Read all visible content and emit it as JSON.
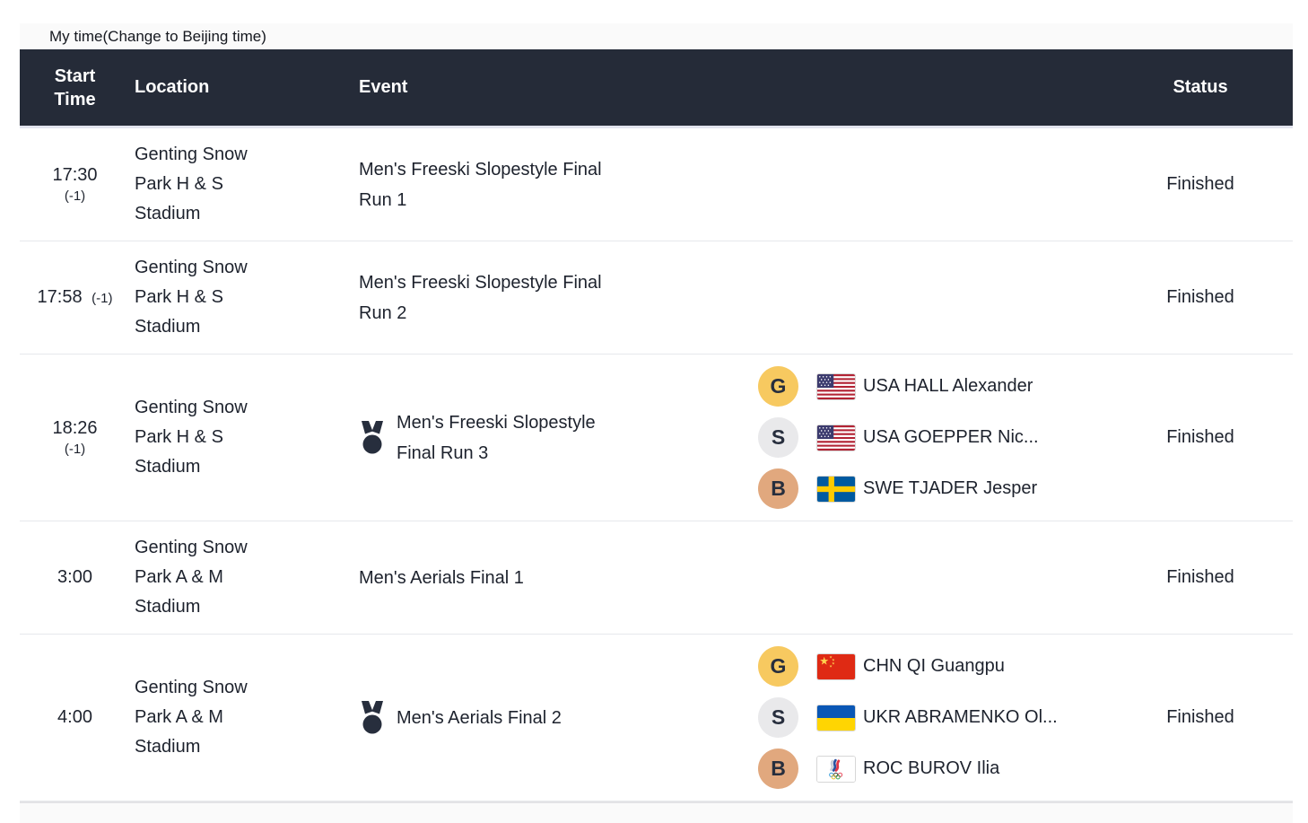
{
  "toolbar": {
    "my_time_prefix": "My time ",
    "change_time_label": "(Change to Beijing time)"
  },
  "colors": {
    "header_bg": "#252b38",
    "header_text": "#ffffff",
    "gold": "#f7c960",
    "silver": "#e9e9eb",
    "bronze": "#e1a87e",
    "row_text": "#1d222d"
  },
  "table": {
    "headers": {
      "start_time": "Start Time",
      "location": "Location",
      "event": "Event",
      "status": "Status"
    },
    "rows": [
      {
        "time": "17:30",
        "offset": "(-1)",
        "offset_layout": "stacked",
        "location": "Genting Snow Park H & S Stadium",
        "event": "Men's Freeski Slopestyle Final Run 1",
        "medal_icon": false,
        "medalists": [],
        "status": "Finished"
      },
      {
        "time": "17:58",
        "offset": "(-1)",
        "offset_layout": "inline",
        "location": "Genting Snow Park H & S Stadium",
        "event": "Men's Freeski Slopestyle Final Run 2",
        "medal_icon": false,
        "medalists": [],
        "status": "Finished"
      },
      {
        "time": "18:26",
        "offset": "(-1)",
        "offset_layout": "stacked",
        "location": "Genting Snow Park H & S Stadium",
        "event": "Men's Freeski Slopestyle Final Run 3",
        "medal_icon": true,
        "medalists": [
          {
            "medal": "G",
            "flag": "usa-flag",
            "name": "USA HALL Alexander"
          },
          {
            "medal": "S",
            "flag": "usa-flag",
            "name": "USA GOEPPER Nic..."
          },
          {
            "medal": "B",
            "flag": "swe-flag",
            "name": "SWE TJADER Jesper"
          }
        ],
        "status": "Finished"
      },
      {
        "time": "3:00",
        "offset": "",
        "offset_layout": "none",
        "location": "Genting Snow Park A & M Stadium",
        "event": "Men's Aerials Final 1",
        "medal_icon": false,
        "medalists": [],
        "status": "Finished"
      },
      {
        "time": "4:00",
        "offset": "",
        "offset_layout": "none",
        "location": "Genting Snow Park A & M Stadium",
        "event": "Men's Aerials Final 2",
        "medal_icon": true,
        "medalists": [
          {
            "medal": "G",
            "flag": "chn-flag",
            "name": "CHN QI Guangpu"
          },
          {
            "medal": "S",
            "flag": "ukr-flag",
            "name": "UKR ABRAMENKO Ol..."
          },
          {
            "medal": "B",
            "flag": "roc-flag",
            "name": "ROC BUROV Ilia"
          }
        ],
        "status": "Finished"
      }
    ]
  }
}
